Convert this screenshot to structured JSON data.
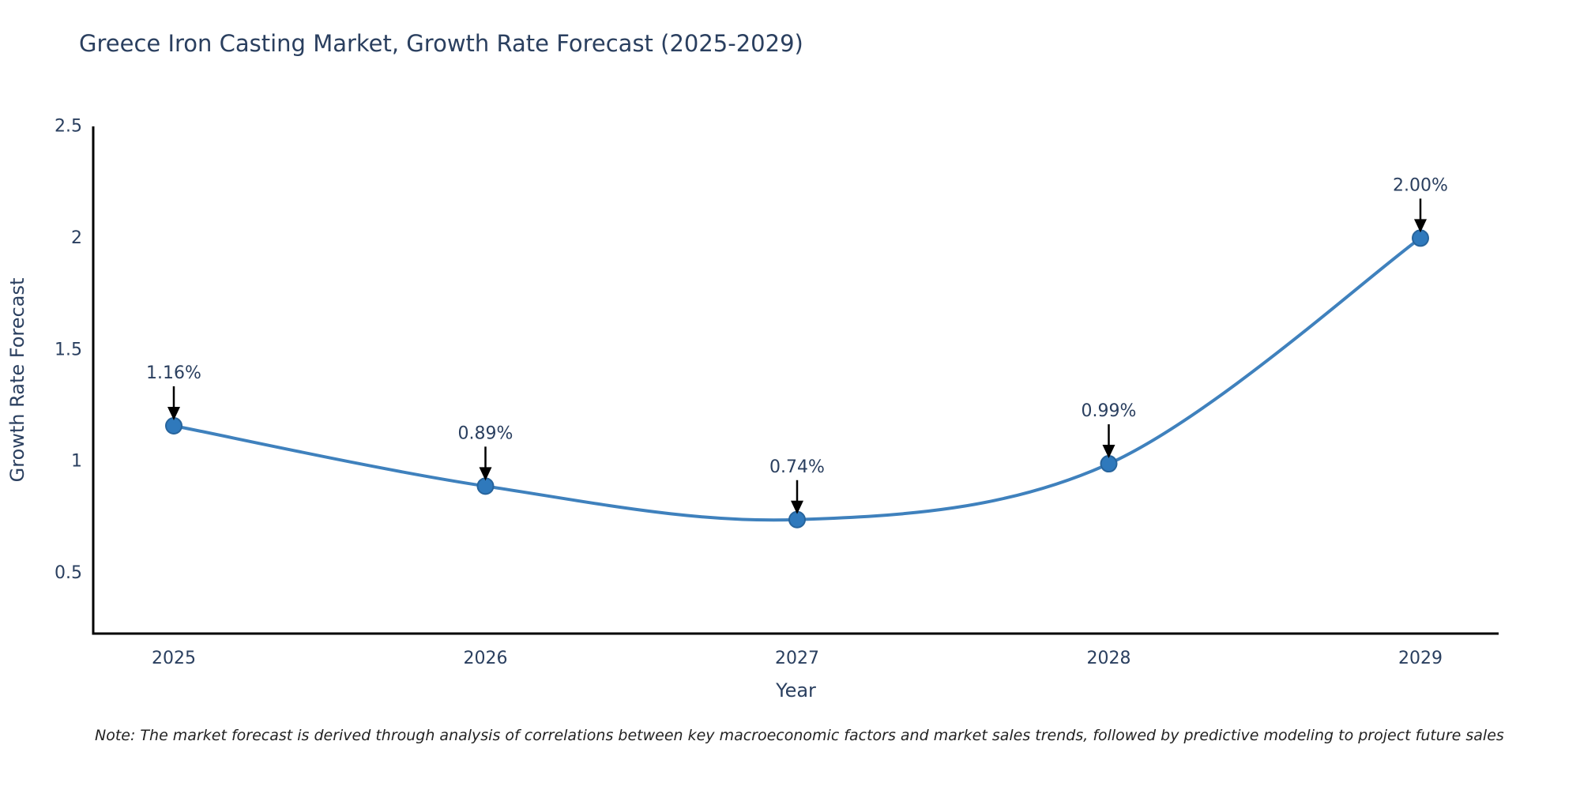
{
  "chart": {
    "title": "Greece Iron Casting Market, Growth Rate Forecast (2025-2029)",
    "note": "Note: The market forecast is derived through analysis of correlations between key macroeconomic factors and market sales trends, followed by predictive modeling to project future sales"
  },
  "chart_data": {
    "type": "line",
    "line_shape": "spline",
    "title": "Greece Iron Casting Market, Growth Rate Forecast (2025-2029)",
    "xlabel": "Year",
    "ylabel": "Growth Rate Forecast",
    "x": [
      2025,
      2026,
      2027,
      2028,
      2029
    ],
    "values": [
      1.16,
      0.89,
      0.74,
      0.99,
      2.0
    ],
    "point_labels": [
      "1.16%",
      "0.89%",
      "0.74%",
      "0.99%",
      "2.00%"
    ],
    "yticks": [
      0.5,
      1,
      1.5,
      2,
      2.5
    ],
    "ytick_labels": [
      "0.5",
      "1",
      "1.5",
      "2",
      "2.5"
    ],
    "ylim": [
      0.23,
      2.5
    ],
    "grid": false,
    "legend": "none",
    "annotation_style": "value-label-with-down-arrow",
    "colors": {
      "line": "#3f81bd",
      "marker": "#2f79bc",
      "marker_edge": "#27649c",
      "arrow": "#000000",
      "axis": "#000000",
      "text": "#2a3f5f",
      "note_text": "#222222",
      "background": "#ffffff"
    }
  }
}
